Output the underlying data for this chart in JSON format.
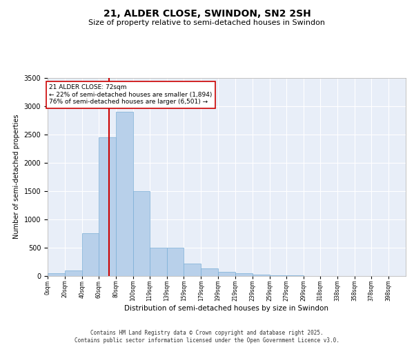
{
  "title": "21, ALDER CLOSE, SWINDON, SN2 2SH",
  "subtitle": "Size of property relative to semi-detached houses in Swindon",
  "xlabel": "Distribution of semi-detached houses by size in Swindon",
  "ylabel": "Number of semi-detached properties",
  "footer": "Contains HM Land Registry data © Crown copyright and database right 2025.\nContains public sector information licensed under the Open Government Licence v3.0.",
  "bins": [
    "0sqm",
    "20sqm",
    "40sqm",
    "60sqm",
    "80sqm",
    "100sqm",
    "119sqm",
    "139sqm",
    "159sqm",
    "179sqm",
    "199sqm",
    "219sqm",
    "239sqm",
    "259sqm",
    "279sqm",
    "299sqm",
    "318sqm",
    "338sqm",
    "358sqm",
    "378sqm",
    "398sqm"
  ],
  "bin_starts": [
    0,
    20,
    40,
    60,
    80,
    100,
    119,
    139,
    159,
    179,
    199,
    219,
    239,
    259,
    279,
    299,
    318,
    338,
    358,
    378,
    398
  ],
  "values": [
    50,
    100,
    750,
    2450,
    2900,
    1500,
    500,
    500,
    220,
    130,
    75,
    50,
    30,
    15,
    8,
    4,
    2,
    1,
    1,
    0,
    0
  ],
  "bar_color": "#b8d0ea",
  "bar_edge_color": "#7aaed6",
  "property_line_x": 72,
  "property_line_color": "#cc0000",
  "annotation_title": "21 ALDER CLOSE: 72sqm",
  "annotation_line1": "← 22% of semi-detached houses are smaller (1,894)",
  "annotation_line2": "76% of semi-detached houses are larger (6,501) →",
  "annotation_box_facecolor": "#ffffff",
  "annotation_box_edgecolor": "#cc0000",
  "ylim": [
    0,
    3500
  ],
  "yticks": [
    0,
    500,
    1000,
    1500,
    2000,
    2500,
    3000,
    3500
  ],
  "xlim": [
    0,
    418
  ],
  "background_color": "#e8eef8",
  "grid_color": "#ffffff",
  "title_fontsize": 10,
  "subtitle_fontsize": 8,
  "ylabel_fontsize": 7,
  "xlabel_fontsize": 7.5,
  "ytick_fontsize": 7,
  "xtick_fontsize": 5.5,
  "footer_fontsize": 5.5
}
